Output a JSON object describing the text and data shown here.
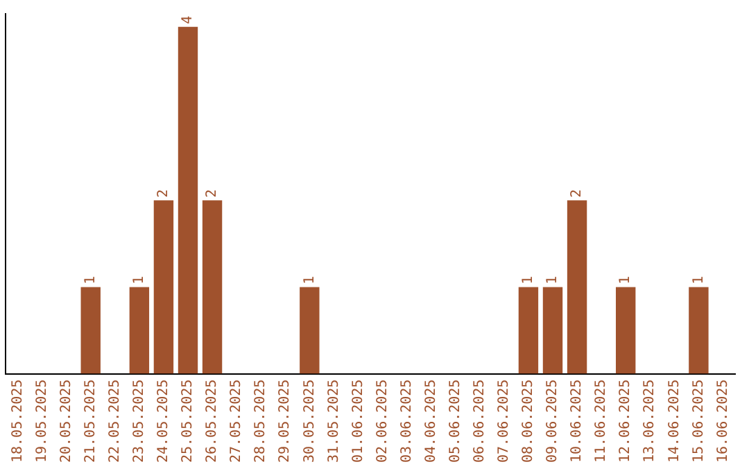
{
  "chart_data": {
    "type": "bar",
    "categories": [
      "18.05.2025",
      "19.05.2025",
      "20.05.2025",
      "21.05.2025",
      "22.05.2025",
      "23.05.2025",
      "24.05.2025",
      "25.05.2025",
      "26.05.2025",
      "27.05.2025",
      "28.05.2025",
      "29.05.2025",
      "30.05.2025",
      "31.05.2025",
      "01.06.2025",
      "02.06.2025",
      "03.06.2025",
      "04.06.2025",
      "05.06.2025",
      "06.06.2025",
      "07.06.2025",
      "08.06.2025",
      "09.06.2025",
      "10.06.2025",
      "11.06.2025",
      "12.06.2025",
      "13.06.2025",
      "14.06.2025",
      "15.06.2025",
      "16.06.2025"
    ],
    "values": [
      0,
      0,
      0,
      1,
      0,
      1,
      2,
      4,
      2,
      0,
      0,
      0,
      1,
      0,
      0,
      0,
      0,
      0,
      0,
      0,
      0,
      1,
      1,
      2,
      0,
      1,
      0,
      0,
      1,
      0
    ],
    "value_labels": [
      null,
      null,
      null,
      "1",
      null,
      "1",
      "2",
      "4",
      "2",
      null,
      null,
      null,
      "1",
      null,
      null,
      null,
      null,
      null,
      null,
      null,
      null,
      "1",
      "1",
      "2",
      null,
      "1",
      null,
      null,
      "1",
      null
    ],
    "color": "#a0522d",
    "ylim": [
      0,
      4.15
    ],
    "tick_labels": "x",
    "grid": false,
    "legend": false
  }
}
